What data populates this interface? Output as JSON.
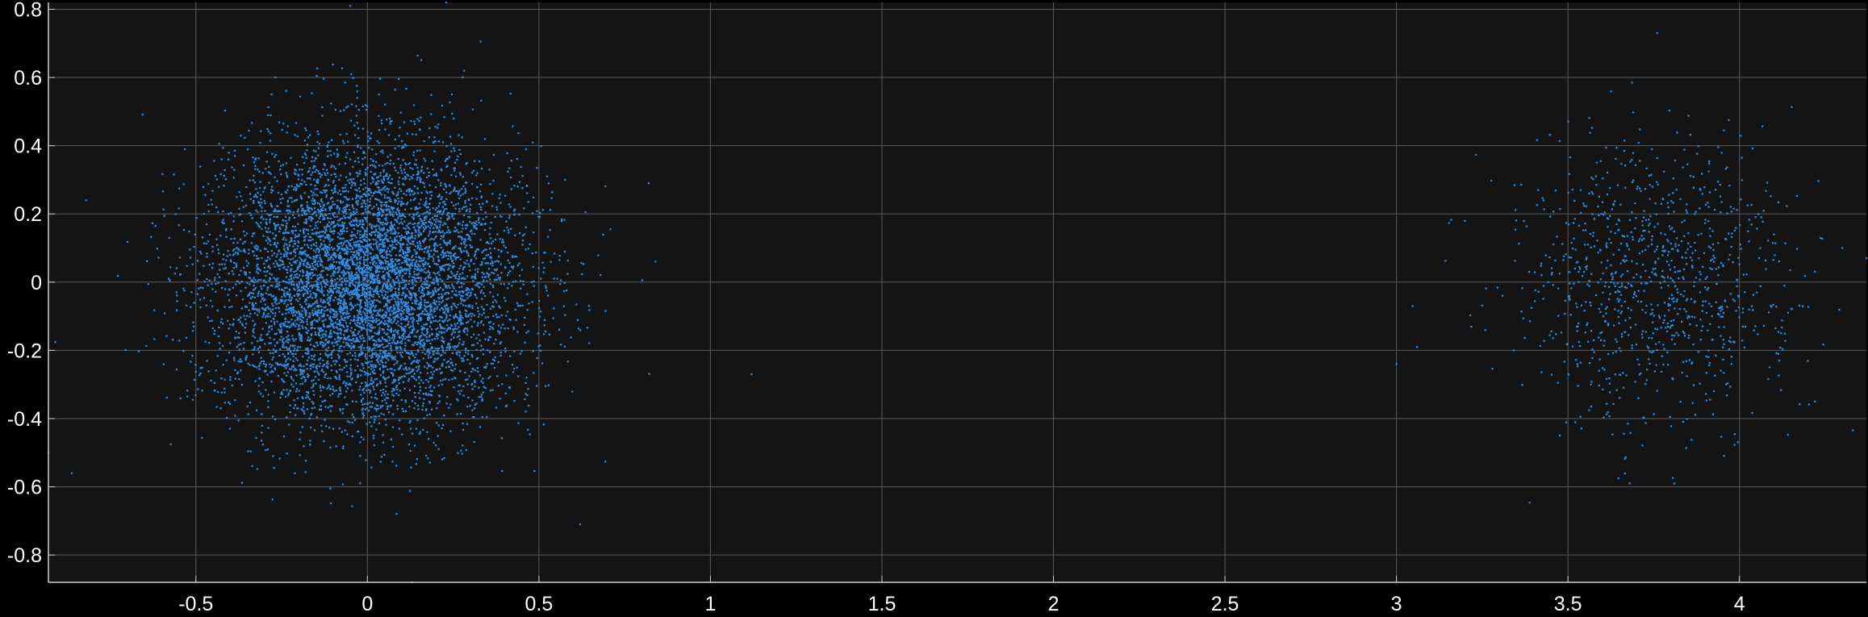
{
  "chart_data": {
    "type": "scatter",
    "title": "",
    "xlabel": "",
    "ylabel": "",
    "xlim": [
      -0.93,
      4.37
    ],
    "ylim": [
      -0.88,
      0.82
    ],
    "grid": true,
    "x_ticks": [
      "-0.5",
      "0",
      "0.5",
      "1",
      "1.5",
      "2",
      "2.5",
      "3",
      "3.5",
      "4"
    ],
    "y_ticks": [
      "0.8",
      "0.6",
      "0.4",
      "0.2",
      "0",
      "-0.2",
      "-0.4",
      "-0.6",
      "-0.8"
    ],
    "colors": {
      "background": "#000000",
      "plot_area": "#141414",
      "grid": "#5a5a5a",
      "axis": "#cfcfcf",
      "tick_label": "#ffffff",
      "marker": "#2e8fe6"
    },
    "series": [
      {
        "points_summary": "dense cluster centered near (0, 0), x spread about ±0.8, y spread about ±0.85",
        "center": [
          0.0,
          0.0
        ],
        "std": [
          0.22,
          0.2
        ],
        "count": 7000,
        "outliers": [
          [
            0.84,
            0.06
          ],
          [
            0.82,
            0.29
          ],
          [
            1.12,
            -0.27
          ],
          [
            0.62,
            -0.71
          ],
          [
            -0.82,
            0.24
          ],
          [
            -0.93,
            -0.5
          ],
          [
            0.23,
            0.82
          ],
          [
            -0.05,
            0.81
          ],
          [
            0.13,
            -0.88
          ]
        ]
      },
      {
        "points_summary": "sparser cluster centered near (3.75, 0), x spread about 3.0–4.37, y spread about ±0.6",
        "center": [
          3.75,
          0.0
        ],
        "std": [
          0.2,
          0.2
        ],
        "count": 1000,
        "outliers": [
          [
            3.0,
            -0.24
          ],
          [
            3.06,
            -0.19
          ],
          [
            4.37,
            0.07
          ],
          [
            3.76,
            0.73
          ],
          [
            3.68,
            -0.59
          ],
          [
            4.3,
            0.1
          ],
          [
            4.22,
            -0.35
          ]
        ]
      }
    ]
  }
}
